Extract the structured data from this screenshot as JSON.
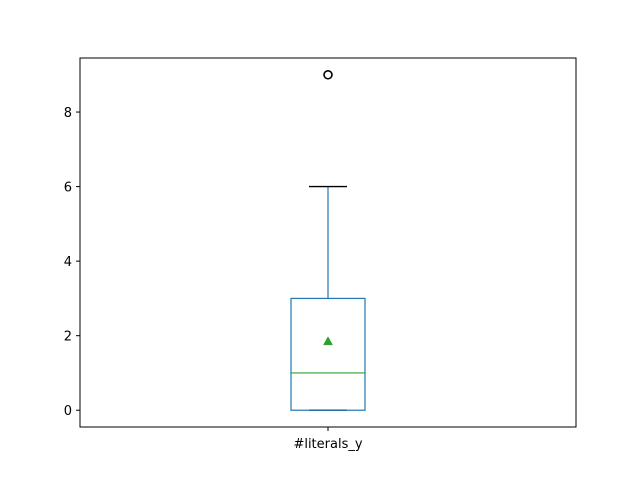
{
  "chart_data": {
    "type": "box",
    "categories": [
      "#literals_y"
    ],
    "boxes": [
      {
        "label": "#literals_y",
        "whisker_low": 0,
        "q1": 0,
        "median": 1,
        "q3": 3,
        "whisker_high": 6,
        "mean": 1.85,
        "outliers": [
          9
        ]
      }
    ],
    "ylim": [
      -0.45,
      9.45
    ],
    "yticks": [
      0,
      2,
      4,
      6,
      8
    ],
    "ytick_labels": [
      "0",
      "2",
      "4",
      "6",
      "8"
    ],
    "grid": false,
    "legend": "none",
    "colors": {
      "box": "#1f77b4",
      "median": "#2ca02c",
      "mean_marker": "#2ca02c",
      "caps": "#000000",
      "outlier": "#000000"
    }
  }
}
